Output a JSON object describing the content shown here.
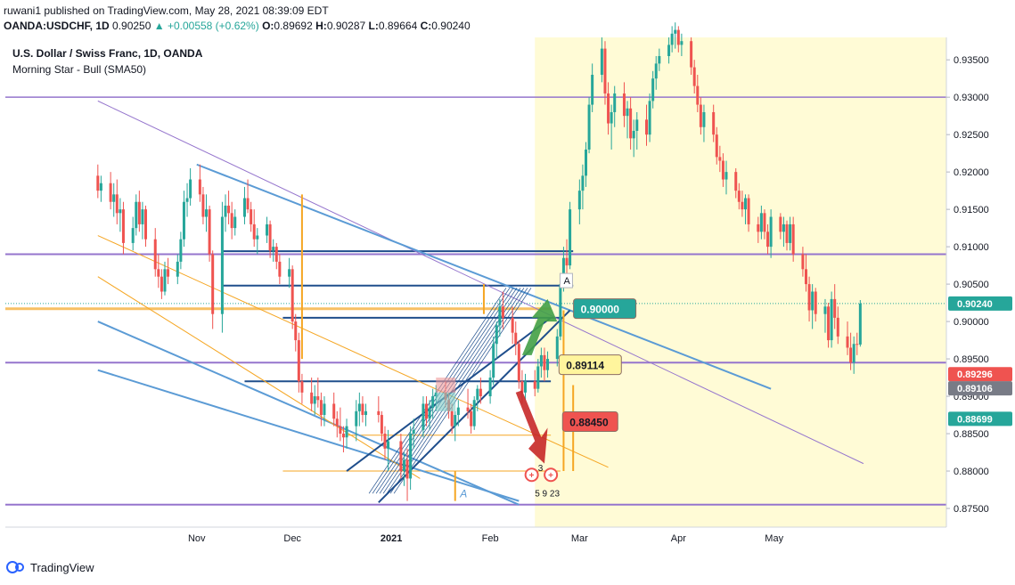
{
  "header": {
    "published": "ruwani1 published on TradingView.com, May 28, 2021 08:39:09 EDT",
    "symbol_line": "OANDA:USDCHF, 1D",
    "last": "0.90250",
    "change": "▲ +0.00558 (+0.62%)",
    "open_label": "O:",
    "open": "0.89692",
    "high_label": "H:",
    "high": "0.90287",
    "low_label": "L:",
    "low": "0.89664",
    "close_label": "C:",
    "close": "0.90240"
  },
  "legend": {
    "title": "U.S. Dollar / Swiss Franc, 1D, OANDA",
    "indicator": "Morning Star - Bull (SMA50)"
  },
  "footer": {
    "brand": "TradingView"
  },
  "colors": {
    "up": "#26a69a",
    "down": "#ef5350",
    "highlight": "#fffbd6",
    "blue_line": "#5b9bd5",
    "navy_line": "#1f4e8c",
    "purple_line": "#9575cd",
    "orange_line": "#f5a623",
    "current": "#26a69a"
  },
  "chart_data": {
    "type": "candlestick",
    "title": "U.S. Dollar / Swiss Franc, 1D, OANDA",
    "ylim": [
      0.8725,
      0.938
    ],
    "y_ticks": [
      "0.93500",
      "0.93000",
      "0.92500",
      "0.92000",
      "0.91500",
      "0.91000",
      "0.90500",
      "0.90000",
      "0.89500",
      "0.89000",
      "0.88500",
      "0.88000",
      "0.87500"
    ],
    "x_ticks": [
      {
        "label": "Nov",
        "day": "2020-11-01"
      },
      {
        "label": "Dec",
        "day": "2020-12-01"
      },
      {
        "label": "2021",
        "day": "2021-01-01"
      },
      {
        "label": "Feb",
        "day": "2021-02-01"
      },
      {
        "label": "Mar",
        "day": "2021-03-01"
      },
      {
        "label": "Apr",
        "day": "2021-04-01"
      },
      {
        "label": "May",
        "day": "2021-05-01"
      }
    ],
    "date_range": [
      "2020-10-01",
      "2021-05-28"
    ],
    "highlight_range": [
      "2021-02-15",
      "2021-05-28"
    ],
    "price_tags": [
      {
        "label": "0.90240",
        "value": 0.9024,
        "color": "#26a69a"
      },
      {
        "label": "0.89296",
        "value": 0.89296,
        "color": "#ef5350"
      },
      {
        "label": "0.89106",
        "value": 0.89106,
        "color": "#787b86"
      },
      {
        "label": "0.88699",
        "value": 0.88699,
        "color": "#26a69a"
      }
    ],
    "annotations": [
      {
        "label": "0.90000",
        "value": 0.9,
        "color": "#26a69a"
      },
      {
        "label": "0.89114",
        "value": 0.89114,
        "color": "#fff59d"
      },
      {
        "label": "0.88450",
        "value": 0.8845,
        "color": "#ef5350"
      }
    ],
    "pattern_markers": [
      "A",
      "3",
      "5",
      "9",
      "23"
    ],
    "key_levels": [
      0.93,
      0.909,
      0.8945,
      0.8755,
      0.9017,
      0.9048,
      0.9094
    ],
    "candles": [
      [
        "2020-10-01",
        0.9195,
        0.921,
        0.9165,
        0.9175
      ],
      [
        "2020-10-02",
        0.9175,
        0.9195,
        0.916,
        0.9185
      ],
      [
        "2020-10-05",
        0.9185,
        0.92,
        0.915,
        0.916
      ],
      [
        "2020-10-06",
        0.916,
        0.9185,
        0.914,
        0.917
      ],
      [
        "2020-10-07",
        0.917,
        0.919,
        0.913,
        0.9145
      ],
      [
        "2020-10-08",
        0.9145,
        0.9165,
        0.912,
        0.915
      ],
      [
        "2020-10-09",
        0.915,
        0.916,
        0.909,
        0.9105
      ],
      [
        "2020-10-12",
        0.9105,
        0.914,
        0.9095,
        0.9125
      ],
      [
        "2020-10-13",
        0.9125,
        0.917,
        0.9115,
        0.916
      ],
      [
        "2020-10-14",
        0.916,
        0.9175,
        0.912,
        0.913
      ],
      [
        "2020-10-15",
        0.913,
        0.916,
        0.911,
        0.915
      ],
      [
        "2020-10-16",
        0.915,
        0.9155,
        0.91,
        0.911
      ],
      [
        "2020-10-19",
        0.911,
        0.9125,
        0.906,
        0.907
      ],
      [
        "2020-10-20",
        0.907,
        0.909,
        0.9045,
        0.906
      ],
      [
        "2020-10-21",
        0.906,
        0.907,
        0.903,
        0.904
      ],
      [
        "2020-10-22",
        0.904,
        0.908,
        0.9035,
        0.907
      ],
      [
        "2020-10-23",
        0.907,
        0.9085,
        0.905,
        0.906
      ],
      [
        "2020-10-26",
        0.906,
        0.909,
        0.905,
        0.908
      ],
      [
        "2020-10-27",
        0.908,
        0.912,
        0.907,
        0.911
      ],
      [
        "2020-10-28",
        0.911,
        0.9175,
        0.91,
        0.916
      ],
      [
        "2020-10-29",
        0.916,
        0.9185,
        0.914,
        0.9165
      ],
      [
        "2020-10-30",
        0.9165,
        0.9205,
        0.9155,
        0.919
      ],
      [
        "2020-11-02",
        0.919,
        0.921,
        0.916,
        0.917
      ],
      [
        "2020-11-03",
        0.917,
        0.918,
        0.913,
        0.914
      ],
      [
        "2020-11-04",
        0.914,
        0.917,
        0.912,
        0.915
      ],
      [
        "2020-11-05",
        0.915,
        0.9155,
        0.908,
        0.909
      ],
      [
        "2020-11-06",
        0.909,
        0.9095,
        0.899,
        0.901
      ],
      [
        "2020-11-09",
        0.901,
        0.916,
        0.8985,
        0.914
      ],
      [
        "2020-11-10",
        0.914,
        0.917,
        0.912,
        0.9155
      ],
      [
        "2020-11-11",
        0.9155,
        0.9175,
        0.913,
        0.9145
      ],
      [
        "2020-11-12",
        0.9145,
        0.916,
        0.911,
        0.9125
      ],
      [
        "2020-11-13",
        0.9125,
        0.915,
        0.9115,
        0.914
      ],
      [
        "2020-11-16",
        0.914,
        0.918,
        0.913,
        0.9165
      ],
      [
        "2020-11-17",
        0.9165,
        0.919,
        0.9145,
        0.915
      ],
      [
        "2020-11-18",
        0.915,
        0.916,
        0.912,
        0.913
      ],
      [
        "2020-11-19",
        0.913,
        0.915,
        0.91,
        0.911
      ],
      [
        "2020-11-20",
        0.911,
        0.9125,
        0.909,
        0.9115
      ],
      [
        "2020-11-23",
        0.9115,
        0.914,
        0.9105,
        0.913
      ],
      [
        "2020-11-24",
        0.913,
        0.9135,
        0.9085,
        0.9095
      ],
      [
        "2020-11-25",
        0.9095,
        0.911,
        0.908,
        0.91
      ],
      [
        "2020-11-26",
        0.91,
        0.9105,
        0.907,
        0.908
      ],
      [
        "2020-11-27",
        0.908,
        0.909,
        0.905,
        0.906
      ],
      [
        "2020-11-30",
        0.906,
        0.9085,
        0.9045,
        0.907
      ],
      [
        "2020-12-01",
        0.907,
        0.9075,
        0.899,
        0.9
      ],
      [
        "2020-12-02",
        0.9,
        0.901,
        0.896,
        0.8975
      ],
      [
        "2020-12-03",
        0.8975,
        0.8985,
        0.8905,
        0.892
      ],
      [
        "2020-12-04",
        0.892,
        0.893,
        0.889,
        0.8905
      ],
      [
        "2020-12-07",
        0.8905,
        0.8925,
        0.888,
        0.889
      ],
      [
        "2020-12-08",
        0.889,
        0.8915,
        0.8875,
        0.89
      ],
      [
        "2020-12-09",
        0.89,
        0.8925,
        0.8885,
        0.8895
      ],
      [
        "2020-12-10",
        0.8895,
        0.8905,
        0.886,
        0.8875
      ],
      [
        "2020-12-11",
        0.8875,
        0.89,
        0.886,
        0.889
      ],
      [
        "2020-12-14",
        0.889,
        0.8905,
        0.886,
        0.887
      ],
      [
        "2020-12-15",
        0.887,
        0.888,
        0.8845,
        0.886
      ],
      [
        "2020-12-16",
        0.886,
        0.8885,
        0.884,
        0.885
      ],
      [
        "2020-12-17",
        0.885,
        0.886,
        0.8825,
        0.8845
      ],
      [
        "2020-12-18",
        0.8845,
        0.887,
        0.883,
        0.886
      ],
      [
        "2020-12-21",
        0.886,
        0.8895,
        0.884,
        0.888
      ],
      [
        "2020-12-22",
        0.888,
        0.8905,
        0.886,
        0.889
      ],
      [
        "2020-12-23",
        0.889,
        0.89,
        0.8865,
        0.8875
      ],
      [
        "2020-12-24",
        0.8875,
        0.889,
        0.886,
        0.888
      ],
      [
        "2020-12-28",
        0.888,
        0.89,
        0.8865,
        0.8875
      ],
      [
        "2020-12-29",
        0.8875,
        0.888,
        0.884,
        0.885
      ],
      [
        "2020-12-30",
        0.885,
        0.886,
        0.8815,
        0.883
      ],
      [
        "2020-12-31",
        0.883,
        0.8855,
        0.88,
        0.884
      ],
      [
        "2021-01-04",
        0.884,
        0.885,
        0.879,
        0.88
      ],
      [
        "2021-01-05",
        0.88,
        0.8825,
        0.878,
        0.8815
      ],
      [
        "2021-01-06",
        0.8815,
        0.883,
        0.876,
        0.879
      ],
      [
        "2021-01-07",
        0.879,
        0.886,
        0.8775,
        0.885
      ],
      [
        "2021-01-08",
        0.885,
        0.887,
        0.883,
        0.8855
      ],
      [
        "2021-01-11",
        0.8855,
        0.89,
        0.8845,
        0.889
      ],
      [
        "2021-01-12",
        0.889,
        0.89,
        0.886,
        0.887
      ],
      [
        "2021-01-13",
        0.887,
        0.8895,
        0.8855,
        0.8885
      ],
      [
        "2021-01-14",
        0.8885,
        0.891,
        0.887,
        0.89
      ],
      [
        "2021-01-15",
        0.89,
        0.8915,
        0.888,
        0.8905
      ],
      [
        "2021-01-18",
        0.8905,
        0.892,
        0.8885,
        0.8895
      ],
      [
        "2021-01-19",
        0.8895,
        0.8905,
        0.887,
        0.888
      ],
      [
        "2021-01-20",
        0.888,
        0.889,
        0.885,
        0.886
      ],
      [
        "2021-01-21",
        0.886,
        0.888,
        0.884,
        0.8875
      ],
      [
        "2021-01-22",
        0.8875,
        0.8895,
        0.886,
        0.8885
      ],
      [
        "2021-01-25",
        0.8885,
        0.891,
        0.887,
        0.888
      ],
      [
        "2021-01-26",
        0.888,
        0.889,
        0.885,
        0.886
      ],
      [
        "2021-01-27",
        0.886,
        0.89,
        0.8855,
        0.8895
      ],
      [
        "2021-01-28",
        0.8895,
        0.8915,
        0.888,
        0.891
      ],
      [
        "2021-01-29",
        0.891,
        0.8925,
        0.889,
        0.89
      ],
      [
        "2021-02-01",
        0.89,
        0.8935,
        0.889,
        0.8925
      ],
      [
        "2021-02-02",
        0.8925,
        0.898,
        0.8915,
        0.897
      ],
      [
        "2021-02-03",
        0.897,
        0.9,
        0.895,
        0.8995
      ],
      [
        "2021-02-04",
        0.8995,
        0.903,
        0.898,
        0.902
      ],
      [
        "2021-02-05",
        0.902,
        0.904,
        0.899,
        0.9005
      ],
      [
        "2021-02-08",
        0.9005,
        0.902,
        0.897,
        0.8985
      ],
      [
        "2021-02-09",
        0.8985,
        0.9,
        0.8955,
        0.897
      ],
      [
        "2021-02-10",
        0.897,
        0.8975,
        0.891,
        0.892
      ],
      [
        "2021-02-11",
        0.892,
        0.8935,
        0.889,
        0.8905
      ],
      [
        "2021-02-12",
        0.8905,
        0.893,
        0.8895,
        0.892
      ],
      [
        "2021-02-15",
        0.892,
        0.8935,
        0.89,
        0.891
      ],
      [
        "2021-02-16",
        0.891,
        0.895,
        0.8905,
        0.894
      ],
      [
        "2021-02-17",
        0.894,
        0.8965,
        0.8925,
        0.8955
      ],
      [
        "2021-02-18",
        0.8955,
        0.8965,
        0.892,
        0.8935
      ],
      [
        "2021-02-19",
        0.8935,
        0.896,
        0.8925,
        0.895
      ],
      [
        "2021-02-22",
        0.895,
        0.899,
        0.894,
        0.898
      ],
      [
        "2021-02-23",
        0.898,
        0.906,
        0.8975,
        0.905
      ],
      [
        "2021-02-24",
        0.905,
        0.91,
        0.904,
        0.9085
      ],
      [
        "2021-02-25",
        0.9085,
        0.911,
        0.906,
        0.9075
      ],
      [
        "2021-02-26",
        0.9075,
        0.916,
        0.907,
        0.915
      ],
      [
        "2021-03-01",
        0.915,
        0.919,
        0.913,
        0.9175
      ],
      [
        "2021-03-02",
        0.9175,
        0.921,
        0.915,
        0.9195
      ],
      [
        "2021-03-03",
        0.9195,
        0.924,
        0.918,
        0.923
      ],
      [
        "2021-03-04",
        0.923,
        0.93,
        0.9225,
        0.929
      ],
      [
        "2021-03-05",
        0.929,
        0.9345,
        0.928,
        0.933
      ],
      [
        "2021-03-08",
        0.933,
        0.938,
        0.932,
        0.9365
      ],
      [
        "2021-03-09",
        0.9365,
        0.9375,
        0.929,
        0.9305
      ],
      [
        "2021-03-10",
        0.9305,
        0.932,
        0.925,
        0.9265
      ],
      [
        "2021-03-11",
        0.9265,
        0.929,
        0.923,
        0.928
      ],
      [
        "2021-03-12",
        0.928,
        0.9315,
        0.926,
        0.9305
      ],
      [
        "2021-03-15",
        0.9305,
        0.932,
        0.926,
        0.9275
      ],
      [
        "2021-03-16",
        0.9275,
        0.9295,
        0.9245,
        0.9285
      ],
      [
        "2021-03-17",
        0.9285,
        0.93,
        0.923,
        0.9245
      ],
      [
        "2021-03-18",
        0.9245,
        0.927,
        0.922,
        0.9255
      ],
      [
        "2021-03-19",
        0.9255,
        0.928,
        0.923,
        0.927
      ],
      [
        "2021-03-22",
        0.927,
        0.929,
        0.9235,
        0.925
      ],
      [
        "2021-03-23",
        0.925,
        0.9305,
        0.924,
        0.9295
      ],
      [
        "2021-03-24",
        0.9295,
        0.9335,
        0.9285,
        0.9325
      ],
      [
        "2021-03-25",
        0.9325,
        0.9355,
        0.931,
        0.9345
      ],
      [
        "2021-03-26",
        0.9345,
        0.9365,
        0.9335,
        0.9355
      ],
      [
        "2021-03-29",
        0.9355,
        0.938,
        0.9345,
        0.937
      ],
      [
        "2021-03-30",
        0.937,
        0.9395,
        0.936,
        0.9385
      ],
      [
        "2021-03-31",
        0.9385,
        0.94,
        0.9365,
        0.939
      ],
      [
        "2021-04-01",
        0.939,
        0.9395,
        0.936,
        0.937
      ],
      [
        "2021-04-02",
        0.937,
        0.9385,
        0.9355,
        0.9375
      ],
      [
        "2021-04-05",
        0.9375,
        0.938,
        0.933,
        0.934
      ],
      [
        "2021-04-06",
        0.934,
        0.935,
        0.9305,
        0.9315
      ],
      [
        "2021-04-07",
        0.9315,
        0.933,
        0.928,
        0.929
      ],
      [
        "2021-04-08",
        0.929,
        0.93,
        0.925,
        0.926
      ],
      [
        "2021-04-09",
        0.926,
        0.929,
        0.924,
        0.928
      ],
      [
        "2021-04-12",
        0.928,
        0.929,
        0.924,
        0.925
      ],
      [
        "2021-04-13",
        0.925,
        0.926,
        0.921,
        0.922
      ],
      [
        "2021-04-14",
        0.922,
        0.9235,
        0.92,
        0.9215
      ],
      [
        "2021-04-15",
        0.9215,
        0.9225,
        0.918,
        0.919
      ],
      [
        "2021-04-16",
        0.919,
        0.9215,
        0.917,
        0.92
      ],
      [
        "2021-04-19",
        0.92,
        0.9205,
        0.9165,
        0.9175
      ],
      [
        "2021-04-20",
        0.9175,
        0.9185,
        0.915,
        0.916
      ],
      [
        "2021-04-21",
        0.916,
        0.9175,
        0.914,
        0.915
      ],
      [
        "2021-04-22",
        0.915,
        0.917,
        0.913,
        0.9165
      ],
      [
        "2021-04-23",
        0.9165,
        0.917,
        0.912,
        0.913
      ],
      [
        "2021-04-26",
        0.913,
        0.914,
        0.9105,
        0.912
      ],
      [
        "2021-04-27",
        0.912,
        0.9155,
        0.911,
        0.9145
      ],
      [
        "2021-04-28",
        0.9145,
        0.915,
        0.911,
        0.912
      ],
      [
        "2021-04-29",
        0.912,
        0.913,
        0.909,
        0.91
      ],
      [
        "2021-04-30",
        0.91,
        0.915,
        0.9085,
        0.914
      ],
      [
        "2021-05-03",
        0.914,
        0.9145,
        0.911,
        0.912
      ],
      [
        "2021-05-04",
        0.912,
        0.914,
        0.91,
        0.913
      ],
      [
        "2021-05-05",
        0.913,
        0.9135,
        0.9095,
        0.9105
      ],
      [
        "2021-05-06",
        0.9105,
        0.914,
        0.9095,
        0.913
      ],
      [
        "2021-05-07",
        0.913,
        0.914,
        0.908,
        0.909
      ],
      [
        "2021-05-10",
        0.909,
        0.91,
        0.906,
        0.907
      ],
      [
        "2021-05-11",
        0.907,
        0.909,
        0.904,
        0.905
      ],
      [
        "2021-05-12",
        0.905,
        0.906,
        0.9,
        0.9015
      ],
      [
        "2021-05-13",
        0.9015,
        0.905,
        0.899,
        0.904
      ],
      [
        "2021-05-14",
        0.904,
        0.9045,
        0.9,
        0.901
      ],
      [
        "2021-05-17",
        0.901,
        0.903,
        0.8985,
        0.902
      ],
      [
        "2021-05-18",
        0.902,
        0.9025,
        0.8965,
        0.8975
      ],
      [
        "2021-05-19",
        0.8975,
        0.904,
        0.8965,
        0.903
      ],
      [
        "2021-05-20",
        0.903,
        0.905,
        0.899,
        0.9005
      ],
      [
        "2021-05-21",
        0.9005,
        0.902,
        0.897,
        0.898
      ],
      [
        "2021-05-24",
        0.898,
        0.9,
        0.8955,
        0.8965
      ],
      [
        "2021-05-25",
        0.8965,
        0.8985,
        0.8935,
        0.8945
      ],
      [
        "2021-05-26",
        0.8945,
        0.898,
        0.893,
        0.897
      ],
      [
        "2021-05-27",
        0.897,
        0.8985,
        0.8955,
        0.8969
      ],
      [
        "2021-05-28",
        0.89692,
        0.90287,
        0.89664,
        0.9024
      ]
    ]
  }
}
